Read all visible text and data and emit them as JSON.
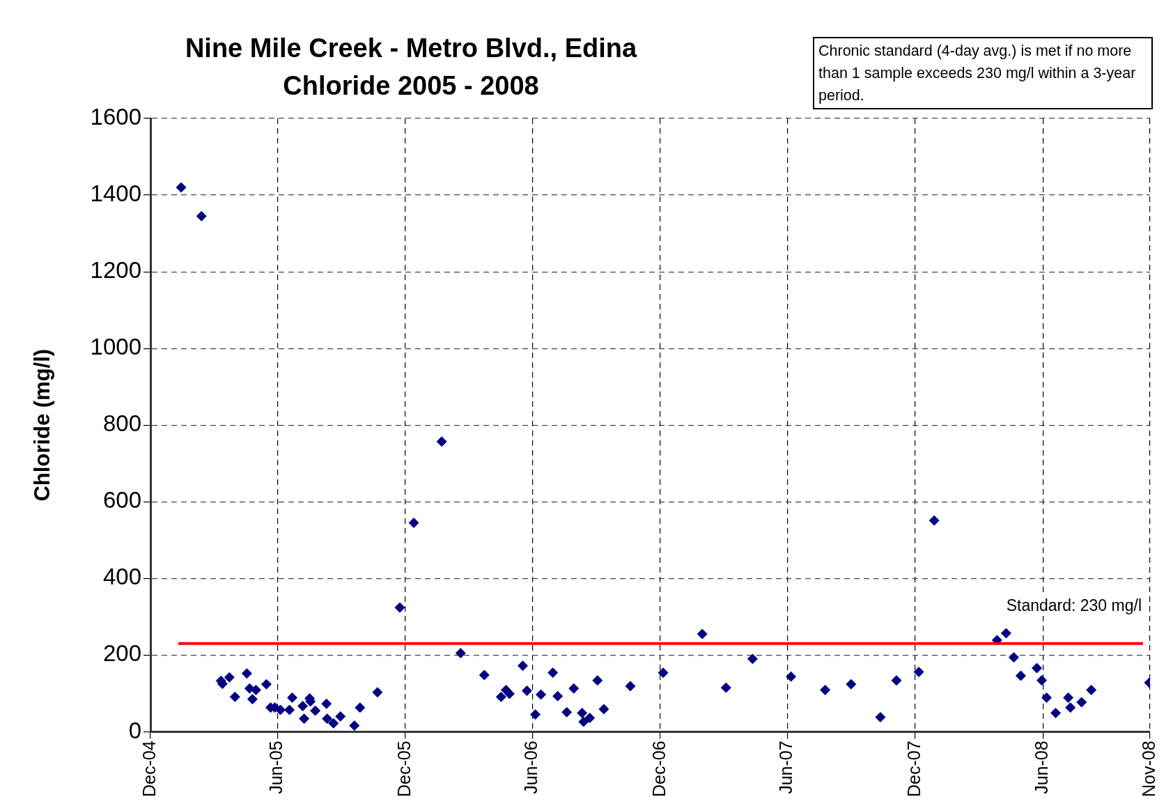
{
  "chart_data": {
    "type": "scatter",
    "title": "Nine Mile Creek - Metro Blvd., Edina",
    "subtitle": "Chloride 2005 - 2008",
    "ylabel": "Chloride (mg/l)",
    "x": [
      "2005-01-14",
      "2005-02-12",
      "2005-03-12",
      "2005-03-14",
      "2005-03-24",
      "2005-04-01",
      "2005-04-18",
      "2005-04-22",
      "2005-04-26",
      "2005-05-01",
      "2005-05-16",
      "2005-05-22",
      "2005-05-28",
      "2005-06-05",
      "2005-06-18",
      "2005-06-22",
      "2005-07-07",
      "2005-07-09",
      "2005-07-17",
      "2005-07-18",
      "2005-07-25",
      "2005-08-10",
      "2005-08-11",
      "2005-08-20",
      "2005-08-30",
      "2005-09-19",
      "2005-09-27",
      "2005-10-22",
      "2005-11-23",
      "2005-12-13",
      "2006-01-22",
      "2006-02-18",
      "2006-03-24",
      "2006-04-17",
      "2006-04-24",
      "2006-04-29",
      "2006-05-18",
      "2006-05-24",
      "2006-06-05",
      "2006-06-13",
      "2006-06-30",
      "2006-07-07",
      "2006-07-20",
      "2006-07-30",
      "2006-08-11",
      "2006-08-13",
      "2006-08-22",
      "2006-09-02",
      "2006-09-11",
      "2006-10-19",
      "2006-12-05",
      "2007-01-30",
      "2007-03-05",
      "2007-04-12",
      "2007-06-06",
      "2007-07-25",
      "2007-08-31",
      "2007-10-12",
      "2007-11-04",
      "2007-12-06",
      "2007-12-28",
      "2008-03-27",
      "2008-04-09",
      "2008-04-20",
      "2008-04-30",
      "2008-05-23",
      "2008-05-30",
      "2008-06-06",
      "2008-06-19",
      "2008-07-07",
      "2008-07-10",
      "2008-07-26",
      "2008-08-09",
      "2008-10-31"
    ],
    "values": [
      1420,
      1345,
      133,
      125,
      142,
      91,
      152,
      113,
      85,
      109,
      124,
      63,
      63,
      57,
      57,
      89,
      67,
      34,
      87,
      79,
      55,
      73,
      34,
      22,
      40,
      16,
      63,
      103,
      324,
      545,
      757,
      205,
      148,
      91,
      109,
      99,
      172,
      107,
      45,
      97,
      154,
      93,
      51,
      113,
      49,
      26,
      36,
      134,
      59,
      119,
      154,
      255,
      115,
      190,
      144,
      109,
      124,
      38,
      134,
      156,
      551,
      239,
      257,
      194,
      146,
      166,
      134,
      89,
      49,
      89,
      63,
      77,
      109,
      128
    ],
    "color": "#000080",
    "marker": "diamond",
    "xlim": [
      "2004-12-01",
      "2008-11-01"
    ],
    "xticks": [
      {
        "value": "2004-12-01",
        "label": "Dec-04"
      },
      {
        "value": "2005-06-01",
        "label": "Jun-05"
      },
      {
        "value": "2005-12-01",
        "label": "Dec-05"
      },
      {
        "value": "2006-06-01",
        "label": "Jun-06"
      },
      {
        "value": "2006-12-01",
        "label": "Dec-06"
      },
      {
        "value": "2007-06-01",
        "label": "Jun-07"
      },
      {
        "value": "2007-12-01",
        "label": "Dec-07"
      },
      {
        "value": "2008-06-01",
        "label": "Jun-08"
      },
      {
        "value": "2008-11-01",
        "label": "Nov-08"
      }
    ],
    "ylim": [
      0,
      1600
    ],
    "yticks": [
      0,
      200,
      400,
      600,
      800,
      1000,
      1200,
      1400,
      1600
    ],
    "grid": true,
    "legend": false,
    "ref_lines": [
      {
        "axis": "y",
        "value": 230,
        "label": "Standard: 230 mg/l",
        "color": "#ff0000",
        "line_style": "solid"
      }
    ],
    "annotations": [
      "Chronic standard (4-day avg.) is met if no more than 1 sample exceeds 230 mg/l within a 3-year period."
    ]
  }
}
